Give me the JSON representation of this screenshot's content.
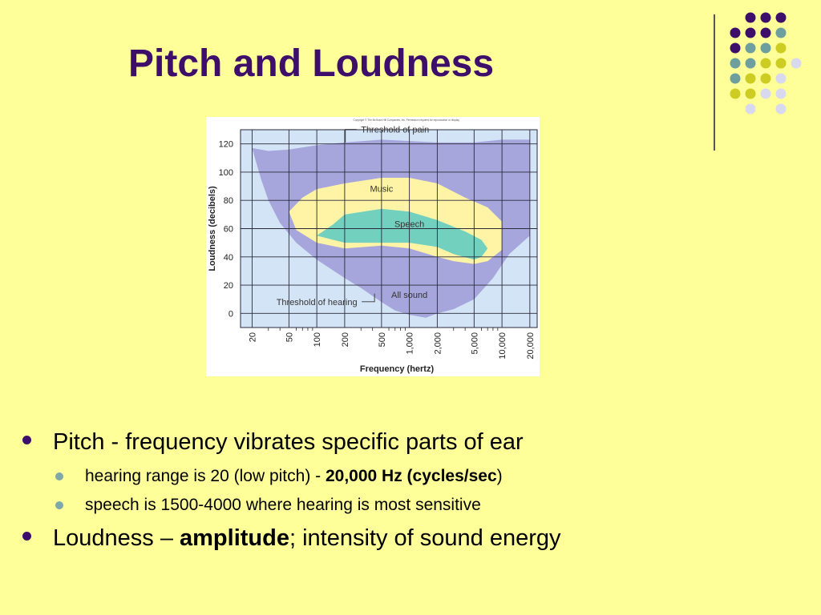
{
  "slide": {
    "title": "Pitch and Loudness",
    "decoration_colors": {
      "purple": "#3D0F6B",
      "teal": "#6E9E9E",
      "olive": "#CCCC22",
      "lavender": "#D8D8EE"
    }
  },
  "bullets": [
    {
      "text": "Pitch - frequency vibrates specific parts of ear"
    },
    {
      "pre": "hearing range is 20 (low pitch) - ",
      "bold": "20,000 Hz (cycles/sec",
      "post": ")"
    },
    {
      "text": "speech is 1500-4000 where hearing is most sensitive"
    },
    {
      "pre": "Loudness – ",
      "bold": "amplitude",
      "post": "; intensity of sound energy"
    }
  ],
  "chart_data": {
    "type": "area",
    "copyright": "Copyright © The McGraw-Hill Companies, Inc. Permission required for reproduction or display.",
    "xlabel": "Frequency (hertz)",
    "ylabel": "Loudness (decibels)",
    "x_scale": "log",
    "x_ticks": [
      20,
      50,
      100,
      200,
      500,
      1000,
      2000,
      5000,
      10000,
      20000
    ],
    "x_tick_labels": [
      "20",
      "50",
      "100",
      "200",
      "500",
      "1,000",
      "2,000",
      "5,000",
      "10,000",
      "20,000"
    ],
    "y_ticks": [
      0,
      20,
      40,
      60,
      80,
      100,
      120
    ],
    "ylim": [
      -10,
      130
    ],
    "grid": true,
    "regions": [
      {
        "name": "All sound",
        "color": "#A6A6DC",
        "points": [
          [
            20,
            117
          ],
          [
            30,
            115
          ],
          [
            50,
            116
          ],
          [
            100,
            119
          ],
          [
            200,
            121
          ],
          [
            500,
            123
          ],
          [
            1000,
            122
          ],
          [
            2000,
            121
          ],
          [
            5000,
            121
          ],
          [
            10000,
            123
          ],
          [
            20000,
            123
          ],
          [
            20000,
            55
          ],
          [
            12000,
            42
          ],
          [
            8000,
            25
          ],
          [
            5000,
            10
          ],
          [
            3000,
            3
          ],
          [
            2000,
            0
          ],
          [
            1500,
            -3
          ],
          [
            1000,
            -1
          ],
          [
            700,
            2
          ],
          [
            500,
            8
          ],
          [
            300,
            18
          ],
          [
            200,
            25
          ],
          [
            100,
            38
          ],
          [
            60,
            50
          ],
          [
            40,
            64
          ],
          [
            30,
            80
          ],
          [
            25,
            95
          ],
          [
            20,
            117
          ]
        ]
      },
      {
        "name": "Music",
        "color": "#FFF3A6",
        "points": [
          [
            50,
            72
          ],
          [
            70,
            82
          ],
          [
            100,
            88
          ],
          [
            200,
            92
          ],
          [
            500,
            96
          ],
          [
            1000,
            96
          ],
          [
            2000,
            92
          ],
          [
            4000,
            82
          ],
          [
            7000,
            75
          ],
          [
            10000,
            65
          ],
          [
            10000,
            45
          ],
          [
            7000,
            37
          ],
          [
            5000,
            35
          ],
          [
            3000,
            37
          ],
          [
            2000,
            40
          ],
          [
            1000,
            46
          ],
          [
            500,
            48
          ],
          [
            200,
            46
          ],
          [
            100,
            50
          ],
          [
            60,
            59
          ],
          [
            50,
            72
          ]
        ]
      },
      {
        "name": "Speech",
        "color": "#72D0BE",
        "points": [
          [
            100,
            55
          ],
          [
            150,
            63
          ],
          [
            200,
            70
          ],
          [
            500,
            74
          ],
          [
            1000,
            72
          ],
          [
            2000,
            66
          ],
          [
            4000,
            58
          ],
          [
            6000,
            52
          ],
          [
            7000,
            46
          ],
          [
            6000,
            40
          ],
          [
            5000,
            38
          ],
          [
            3000,
            42
          ],
          [
            2000,
            47
          ],
          [
            1000,
            50
          ],
          [
            500,
            50
          ],
          [
            200,
            50
          ],
          [
            100,
            55
          ]
        ]
      }
    ],
    "annotations": [
      {
        "text": "Threshold of pain",
        "x": 700,
        "y": 128
      },
      {
        "text": "Music",
        "x": 500,
        "y": 86
      },
      {
        "text": "Speech",
        "x": 1000,
        "y": 61
      },
      {
        "text": "All sound",
        "x": 1000,
        "y": 11
      },
      {
        "text": "Threshold of hearing",
        "x": 100,
        "y": 6
      }
    ]
  }
}
